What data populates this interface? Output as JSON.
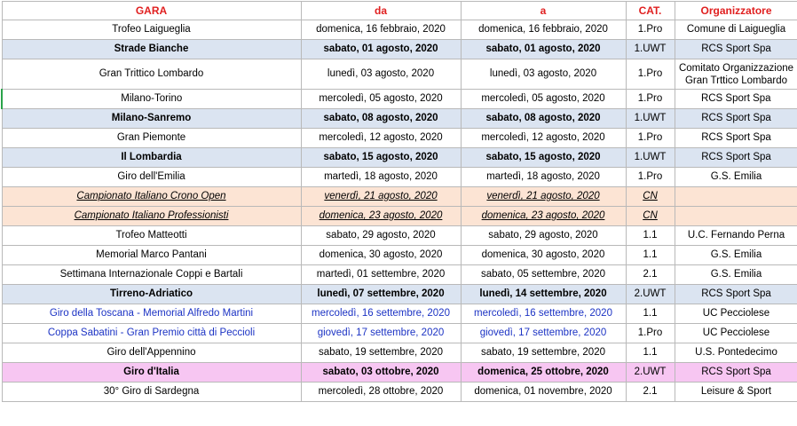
{
  "headers": {
    "gara": "GARA",
    "da": "da",
    "a": "a",
    "cat": "CAT.",
    "org": "Organizzatore"
  },
  "rows": [
    {
      "gara": "Trofeo Laigueglia",
      "da": "domenica, 16 febbraio, 2020",
      "a": "domenica, 16 febbraio, 2020",
      "cat": "1.Pro",
      "org": "Comune di Laigueglia",
      "style": "plain"
    },
    {
      "gara": "Strade Bianche",
      "da": "sabato, 01 agosto, 2020",
      "a": "sabato, 01 agosto, 2020",
      "cat": "1.UWT",
      "org": "RCS Sport Spa",
      "style": "uwt"
    },
    {
      "gara": "Gran Trittico Lombardo",
      "da": "lunedì, 03 agosto, 2020",
      "a": "lunedì, 03 agosto, 2020",
      "cat": "1.Pro",
      "org": "Comitato Organizzazione Gran Trttico Lombardo",
      "style": "plain"
    },
    {
      "gara": "Milano-Torino",
      "da": "mercoledì, 05 agosto, 2020",
      "a": "mercoledì, 05 agosto, 2020",
      "cat": "1.Pro",
      "org": "RCS Sport Spa",
      "style": "plain"
    },
    {
      "gara": "Milano-Sanremo",
      "da": "sabato, 08 agosto, 2020",
      "a": "sabato, 08 agosto, 2020",
      "cat": "1.UWT",
      "org": "RCS Sport Spa",
      "style": "uwt"
    },
    {
      "gara": "Gran Piemonte",
      "da": "mercoledì, 12 agosto, 2020",
      "a": "mercoledì, 12 agosto, 2020",
      "cat": "1.Pro",
      "org": "RCS Sport Spa",
      "style": "plain"
    },
    {
      "gara": "Il Lombardia",
      "da": "sabato, 15 agosto, 2020",
      "a": "sabato, 15 agosto, 2020",
      "cat": "1.UWT",
      "org": "RCS Sport Spa",
      "style": "uwt"
    },
    {
      "gara": "Giro dell'Emilia",
      "da": "martedì, 18 agosto, 2020",
      "a": "martedì, 18 agosto, 2020",
      "cat": "1.Pro",
      "org": "G.S. Emilia",
      "style": "plain"
    },
    {
      "gara": "Campionato Italiano Crono Open",
      "da": "venerdì, 21 agosto, 2020",
      "a": "venerdì, 21 agosto, 2020",
      "cat": "CN",
      "org": "",
      "style": "cn"
    },
    {
      "gara": "Campionato Italiano Professionisti",
      "da": "domenica, 23 agosto, 2020",
      "a": "domenica, 23 agosto, 2020",
      "cat": "CN",
      "org": "",
      "style": "cn"
    },
    {
      "gara": "Trofeo Matteotti",
      "da": "sabato, 29 agosto, 2020",
      "a": "sabato, 29 agosto, 2020",
      "cat": "1.1",
      "org": "U.C. Fernando Perna",
      "style": "plain"
    },
    {
      "gara": "Memorial Marco Pantani",
      "da": "domenica, 30 agosto, 2020",
      "a": "domenica, 30 agosto, 2020",
      "cat": "1.1",
      "org": "G.S. Emilia",
      "style": "plain"
    },
    {
      "gara": "Settimana Internazionale Coppi e Bartali",
      "da": "martedì, 01 settembre, 2020",
      "a": "sabato, 05 settembre, 2020",
      "cat": "2.1",
      "org": "G.S. Emilia",
      "style": "plain"
    },
    {
      "gara": "Tirreno-Adriatico",
      "da": "lunedì, 07 settembre, 2020",
      "a": "lunedì, 14 settembre, 2020",
      "cat": "2.UWT",
      "org": "RCS Sport Spa",
      "style": "uwt"
    },
    {
      "gara": "Giro della Toscana - Memorial Alfredo Martini",
      "da": "mercoledì, 16 settembre, 2020",
      "a": "mercoledì, 16 settembre, 2020",
      "cat": "1.1",
      "org": "UC Pecciolese",
      "style": "blue"
    },
    {
      "gara": "Coppa Sabatini - Gran Premio città di Peccioli",
      "da": "giovedì, 17 settembre, 2020",
      "a": "giovedì, 17 settembre, 2020",
      "cat": "1.Pro",
      "org": "UC Pecciolese",
      "style": "blue"
    },
    {
      "gara": "Giro dell'Appennino",
      "da": "sabato, 19 settembre, 2020",
      "a": "sabato, 19 settembre, 2020",
      "cat": "1.1",
      "org": "U.S. Pontedecimo",
      "style": "plain"
    },
    {
      "gara": "Giro d'Italia",
      "da": "sabato, 03 ottobre, 2020",
      "a": "domenica, 25 ottobre, 2020",
      "cat": "2.UWT",
      "org": "RCS Sport Spa",
      "style": "giro"
    },
    {
      "gara": "30° Giro di Sardegna",
      "da": "mercoledì, 28 ottobre, 2020",
      "a": "domenica, 01 novembre, 2020",
      "cat": "2.1",
      "org": "Leisure & Sport",
      "style": "plain"
    }
  ]
}
